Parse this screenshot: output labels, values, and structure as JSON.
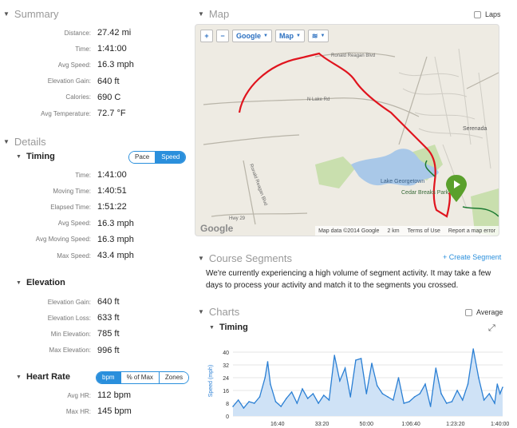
{
  "summary": {
    "title": "Summary",
    "rows": [
      {
        "label": "Distance:",
        "value": "27.42 mi"
      },
      {
        "label": "Time:",
        "value": "1:41:00"
      },
      {
        "label": "Avg Speed:",
        "value": "16.3 mph"
      },
      {
        "label": "Elevation Gain:",
        "value": "640 ft"
      },
      {
        "label": "Calories:",
        "value": "690 C"
      },
      {
        "label": "Avg Temperature:",
        "value": "72.7 °F"
      }
    ]
  },
  "details": {
    "title": "Details",
    "timing": {
      "title": "Timing",
      "toggle": [
        "Pace",
        "Speed"
      ],
      "rows": [
        {
          "label": "Time:",
          "value": "1:41:00"
        },
        {
          "label": "Moving Time:",
          "value": "1:40:51"
        },
        {
          "label": "Elapsed Time:",
          "value": "1:51:22"
        },
        {
          "label": "Avg Speed:",
          "value": "16.3 mph"
        },
        {
          "label": "Avg Moving Speed:",
          "value": "16.3 mph"
        },
        {
          "label": "Max Speed:",
          "value": "43.4 mph"
        }
      ]
    },
    "elevation": {
      "title": "Elevation",
      "rows": [
        {
          "label": "Elevation Gain:",
          "value": "640 ft"
        },
        {
          "label": "Elevation Loss:",
          "value": "633 ft"
        },
        {
          "label": "Min Elevation:",
          "value": "785 ft"
        },
        {
          "label": "Max Elevation:",
          "value": "996 ft"
        }
      ]
    },
    "heart_rate": {
      "title": "Heart Rate",
      "toggle": [
        "bpm",
        "% of Max",
        "Zones"
      ],
      "rows": [
        {
          "label": "Avg HR:",
          "value": "112 bpm"
        },
        {
          "label": "Max HR:",
          "value": "145 bpm"
        }
      ]
    }
  },
  "map": {
    "title": "Map",
    "laps_label": "Laps",
    "zoom_in": "+",
    "zoom_out": "−",
    "provider_label": "Google",
    "type_label": "Map",
    "logo": "Google",
    "footer": {
      "data": "Map data ©2014 Google",
      "scale": "2 km",
      "terms": "Terms of Use",
      "report": "Report a map error"
    },
    "places": {
      "ronald_reagan_n": "Ronald Reagan Blvd",
      "ronald_reagan_w": "Ronald Reagan Blvd",
      "n_lake_rd": "N Lake Rd",
      "lake_georgetown": "Lake Georgetown",
      "cedar_breaks": "Cedar Breaks Park",
      "serenada": "Serenada",
      "hwy": "Hwy 29"
    },
    "route_color": "#e0141e"
  },
  "course_segments": {
    "title": "Course Segments",
    "create_label": "+ Create Segment",
    "message": "We're currently experiencing a high volume of segment activity. It may take a few days to process your activity and match it to the segments you crossed."
  },
  "charts": {
    "title": "Charts",
    "average_label": "Average",
    "timing_title": "Timing"
  },
  "chart_data": {
    "type": "area",
    "title": "Timing",
    "ylabel": "Speed (mph)",
    "xlabel": "",
    "ylim": [
      0,
      44
    ],
    "yticks": [
      "0",
      "8",
      "16",
      "24",
      "32",
      "40"
    ],
    "xticks": [
      "16:40",
      "33:20",
      "50:00",
      "1:06:40",
      "1:23:20",
      "1:40:00"
    ],
    "xtick_minutes": [
      16.67,
      33.33,
      50,
      66.67,
      83.33,
      100
    ],
    "xlim_minutes": [
      0,
      101
    ],
    "color": "#2a7fd4",
    "x_minutes": [
      0,
      2,
      4,
      6,
      8,
      10,
      12,
      13,
      14,
      16,
      18,
      20,
      22,
      24,
      26,
      28,
      30,
      32,
      34,
      36,
      38,
      40,
      42,
      44,
      46,
      48,
      50,
      52,
      54,
      56,
      58,
      60,
      62,
      64,
      66,
      68,
      70,
      72,
      74,
      76,
      78,
      80,
      82,
      84,
      86,
      88,
      90,
      92,
      94,
      96,
      98,
      99,
      100,
      101
    ],
    "values": [
      6,
      10,
      5,
      9,
      8,
      12,
      24,
      34,
      20,
      9,
      6,
      11,
      15,
      8,
      17,
      11,
      14,
      8,
      13,
      10,
      38,
      22,
      30,
      12,
      35,
      36,
      14,
      33,
      19,
      14,
      12,
      10,
      24,
      8,
      9,
      12,
      14,
      20,
      6,
      30,
      14,
      8,
      9,
      16,
      10,
      20,
      42,
      24,
      10,
      14,
      8,
      20,
      14,
      18
    ]
  }
}
